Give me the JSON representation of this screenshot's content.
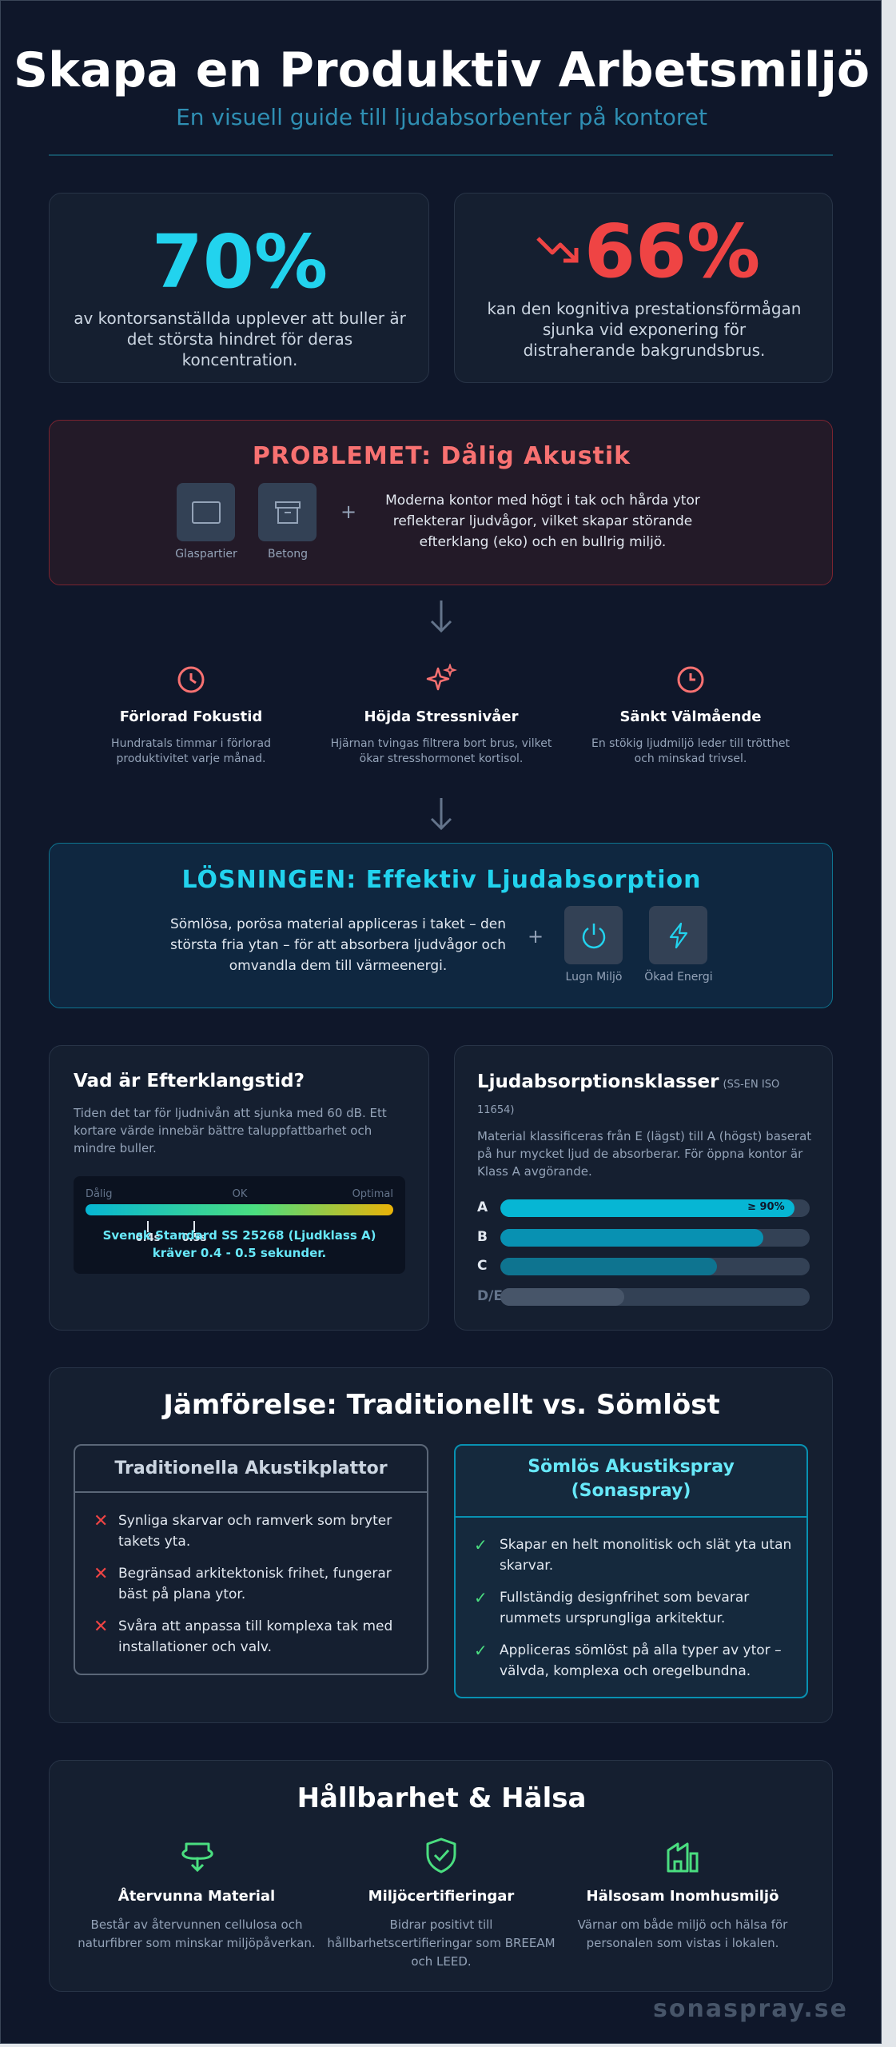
{
  "header": {
    "title": "Skapa en Produktiv Arbetsmiljö",
    "subtitle": "En visuell guide till ljudabsorbenter på kontoret"
  },
  "stats": [
    {
      "value": "70%",
      "text": "av kontorsanställda upplever att buller är det största hindret för deras koncentration."
    },
    {
      "value": "66%",
      "text": "kan den kognitiva prestationsförmågan sjunka vid exponering för distraherande bakgrundsbrus."
    }
  ],
  "problem": {
    "title": "PROBLEMET: Dålig Akustik",
    "materials": [
      "Glaspartier",
      "Betong"
    ],
    "plus": "+",
    "text": "Moderna kontor med högt i tak och hårda ytor reflekterar ljudvågor, vilket skapar störande efterklang (eko) och en bullrig miljö."
  },
  "effects": [
    {
      "title": "Förlorad Fokustid",
      "text": "Hundratals timmar i förlorad produktivitet varje månad."
    },
    {
      "title": "Höjda Stressnivåer",
      "text": "Hjärnan tvingas filtrera bort brus, vilket ökar stresshormonet kortisol."
    },
    {
      "title": "Sänkt Välmående",
      "text": "En stökig ljudmiljö leder till trötthet och minskad trivsel."
    }
  ],
  "solution": {
    "title": "LÖSNINGEN: Effektiv Ljudabsorption",
    "text": "Sömlösa, porösa material appliceras i taket – den största fria ytan – för att absorbera ljudvågor och omvandla dem till värmeenergi.",
    "plus": "+",
    "benefits": [
      "Lugn Miljö",
      "Ökad Energi"
    ]
  },
  "reverberation": {
    "title": "Vad är Efterklangstid?",
    "text": "Tiden det tar för ljudnivån att sjunka med 60 dB. Ett kortare värde innebär bättre taluppfattbarhet och mindre buller.",
    "scale_labels": [
      "Dålig",
      "OK",
      "Optimal"
    ],
    "markers": [
      "0.4s",
      "0.5s"
    ],
    "note": "Svensk Standard SS 25268 (Ljudklass A) kräver 0.4 - 0.5 sekunder."
  },
  "absorption": {
    "title": "Ljudabsorptionsklasser",
    "standard": "(SS-EN ISO 11654)",
    "text": "Material klassificeras från E (lägst) till A (högst) baserat på hur mycket ljud de absorberar. För öppna kontor är Klass A avgörande.",
    "classes": [
      {
        "name": "A",
        "value": 95,
        "label": "≥ 90%"
      },
      {
        "name": "B",
        "value": 85
      },
      {
        "name": "C",
        "value": 70
      },
      {
        "name": "D/E",
        "value": 40
      }
    ]
  },
  "comparison": {
    "title": "Jämförelse: Traditionellt vs. Sömlöst",
    "traditional": {
      "title": "Traditionella Akustikplattor",
      "items": [
        "Synliga skarvar och ramverk som bryter takets yta.",
        "Begränsad arkitektonisk frihet, fungerar bäst på plana ytor.",
        "Svåra att anpassa till komplexa tak med installationer och valv."
      ]
    },
    "seamless": {
      "title": "Sömlös Akustikspray (Sonaspray)",
      "items": [
        "Skapar en helt monolitisk och slät yta utan skarvar.",
        "Fullständig designfrihet som bevarar rummets ursprungliga arkitektur.",
        "Appliceras sömlöst på alla typer av ytor – välvda, komplexa och oregelbundna."
      ]
    }
  },
  "sustainability": {
    "title": "Hållbarhet & Hälsa",
    "items": [
      {
        "title": "Återvunna Material",
        "text": "Består av återvunnen cellulosa och naturfibrer som minskar miljöpåverkan."
      },
      {
        "title": "Miljöcertifieringar",
        "text": "Bidrar positivt till hållbarhetscertifieringar som BREEAM och LEED."
      },
      {
        "title": "Hälsosam Inomhusmiljö",
        "text": "Värnar om både miljö och hälsa för personalen som vistas i lokalen."
      }
    ]
  },
  "footer": "sonaspray.se"
}
